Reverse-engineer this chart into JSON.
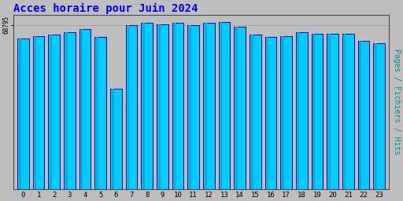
{
  "title": "Acces horaire pour Juin 2024",
  "ylabel": "Pages / Fichiers / Hits",
  "hours": [
    0,
    1,
    2,
    3,
    4,
    5,
    6,
    7,
    8,
    9,
    10,
    11,
    12,
    13,
    14,
    15,
    16,
    17,
    18,
    19,
    20,
    21,
    22,
    23
  ],
  "values": [
    63000,
    64200,
    64600,
    65600,
    67100,
    63600,
    42000,
    68600,
    69600,
    69100,
    69600,
    68600,
    69600,
    70100,
    68100,
    64600,
    63600,
    64100,
    65600,
    65100,
    65000,
    65000,
    62100,
    61100
  ],
  "ytick_label": "68795",
  "bar_face_color": "#00CCFF",
  "bar_edge_color": "#0000AA",
  "bar_left_color": "#00AADD",
  "background_color": "#BEBEBE",
  "plot_bg_color": "#BEBEBE",
  "title_color": "#0000EE",
  "ylabel_color": "#009090",
  "tick_color": "#000000",
  "ylim_min": 0,
  "ylim_max": 73000,
  "title_fontsize": 10,
  "ylabel_fontsize": 7
}
